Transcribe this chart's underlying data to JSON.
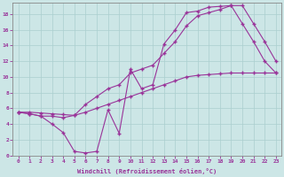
{
  "xlabel": "Windchill (Refroidissement éolien,°C)",
  "background_color": "#cce6e6",
  "grid_color": "#aacece",
  "line_color": "#993399",
  "xlim": [
    -0.5,
    23.5
  ],
  "ylim": [
    0,
    19.5
  ],
  "xticks": [
    0,
    1,
    2,
    3,
    4,
    5,
    6,
    7,
    8,
    9,
    10,
    11,
    12,
    13,
    14,
    15,
    16,
    17,
    18,
    19,
    20,
    21,
    22,
    23
  ],
  "yticks": [
    0,
    2,
    4,
    6,
    8,
    10,
    12,
    14,
    16,
    18
  ],
  "curve1_x": [
    0,
    1,
    2,
    3,
    4,
    5,
    6,
    7,
    8,
    9,
    10,
    11,
    12,
    13,
    14,
    15,
    16,
    17,
    18,
    19,
    20,
    21,
    22,
    23
  ],
  "curve1_y": [
    5.5,
    5.3,
    5.0,
    4.0,
    2.9,
    0.5,
    0.3,
    0.5,
    5.8,
    2.8,
    11.0,
    8.5,
    9.0,
    14.2,
    16.0,
    18.2,
    18.4,
    18.9,
    19.0,
    19.1,
    16.8,
    14.5,
    12.0,
    10.5
  ],
  "curve2_x": [
    0,
    1,
    2,
    3,
    4,
    5,
    6,
    7,
    8,
    9,
    10,
    11,
    12,
    13,
    14,
    15,
    16,
    17,
    18,
    19,
    20,
    21,
    22,
    23
  ],
  "curve2_y": [
    5.5,
    5.3,
    5.0,
    5.0,
    4.8,
    5.1,
    6.5,
    7.5,
    8.5,
    9.0,
    10.5,
    11.0,
    11.5,
    13.0,
    14.5,
    16.5,
    17.8,
    18.2,
    18.6,
    19.1,
    19.1,
    16.8,
    14.5,
    12.0
  ],
  "curve3_x": [
    0,
    1,
    2,
    3,
    4,
    5,
    6,
    7,
    8,
    9,
    10,
    11,
    12,
    13,
    14,
    15,
    16,
    17,
    18,
    19,
    20,
    21,
    22,
    23
  ],
  "curve3_y": [
    5.5,
    5.5,
    5.4,
    5.3,
    5.2,
    5.1,
    5.5,
    6.0,
    6.5,
    7.0,
    7.5,
    8.0,
    8.5,
    9.0,
    9.5,
    10.0,
    10.2,
    10.3,
    10.4,
    10.5,
    10.5,
    10.5,
    10.5,
    10.5
  ]
}
